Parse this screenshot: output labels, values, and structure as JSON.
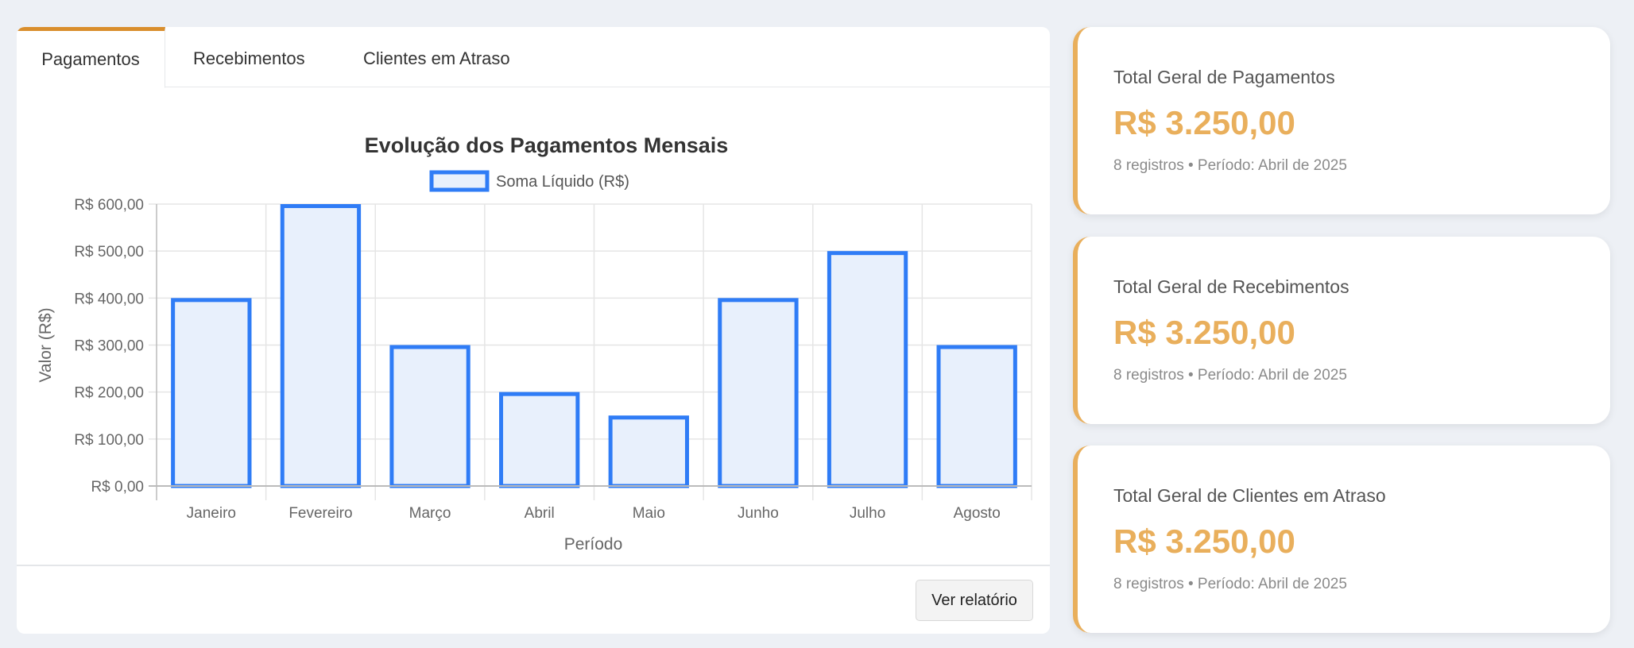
{
  "tabs": [
    {
      "label": "Pagamentos",
      "active": true
    },
    {
      "label": "Recebimentos"
    },
    {
      "label": "Clientes em Atraso"
    }
  ],
  "colors": {
    "accent": "#d98e2c",
    "value": "#e9af5c",
    "bar_border": "#2f7cf6",
    "bar_fill": "#e8f0fc"
  },
  "chart_data": {
    "type": "bar",
    "title": "Evolução dos Pagamentos Mensais",
    "legend": [
      "Soma Líquido (R$)"
    ],
    "legend_position": "top",
    "xlabel": "Período",
    "ylabel": "Valor (R$)",
    "categories": [
      "Janeiro",
      "Fevereiro",
      "Março",
      "Abril",
      "Maio",
      "Junho",
      "Julho",
      "Agosto"
    ],
    "series": [
      {
        "name": "Soma Líquido (R$)",
        "values": [
          400,
          600,
          300,
          200,
          150,
          400,
          500,
          300
        ]
      }
    ],
    "ylim": [
      0,
      600
    ],
    "yticks": [
      "R$ 0,00",
      "R$ 100,00",
      "R$ 200,00",
      "R$ 300,00",
      "R$ 400,00",
      "R$ 500,00",
      "R$ 600,00"
    ],
    "grid": true
  },
  "footer": {
    "report_button": "Ver relatório"
  },
  "stats": [
    {
      "title": "Total Geral de Pagamentos",
      "value": "R$ 3.250,00",
      "sub": "8 registros • Período: Abril de 2025"
    },
    {
      "title": "Total Geral de Recebimentos",
      "value": "R$ 3.250,00",
      "sub": "8 registros • Período: Abril de 2025"
    },
    {
      "title": "Total Geral de Clientes em Atraso",
      "value": "R$ 3.250,00",
      "sub": "8 registros • Período: Abril de 2025"
    }
  ]
}
